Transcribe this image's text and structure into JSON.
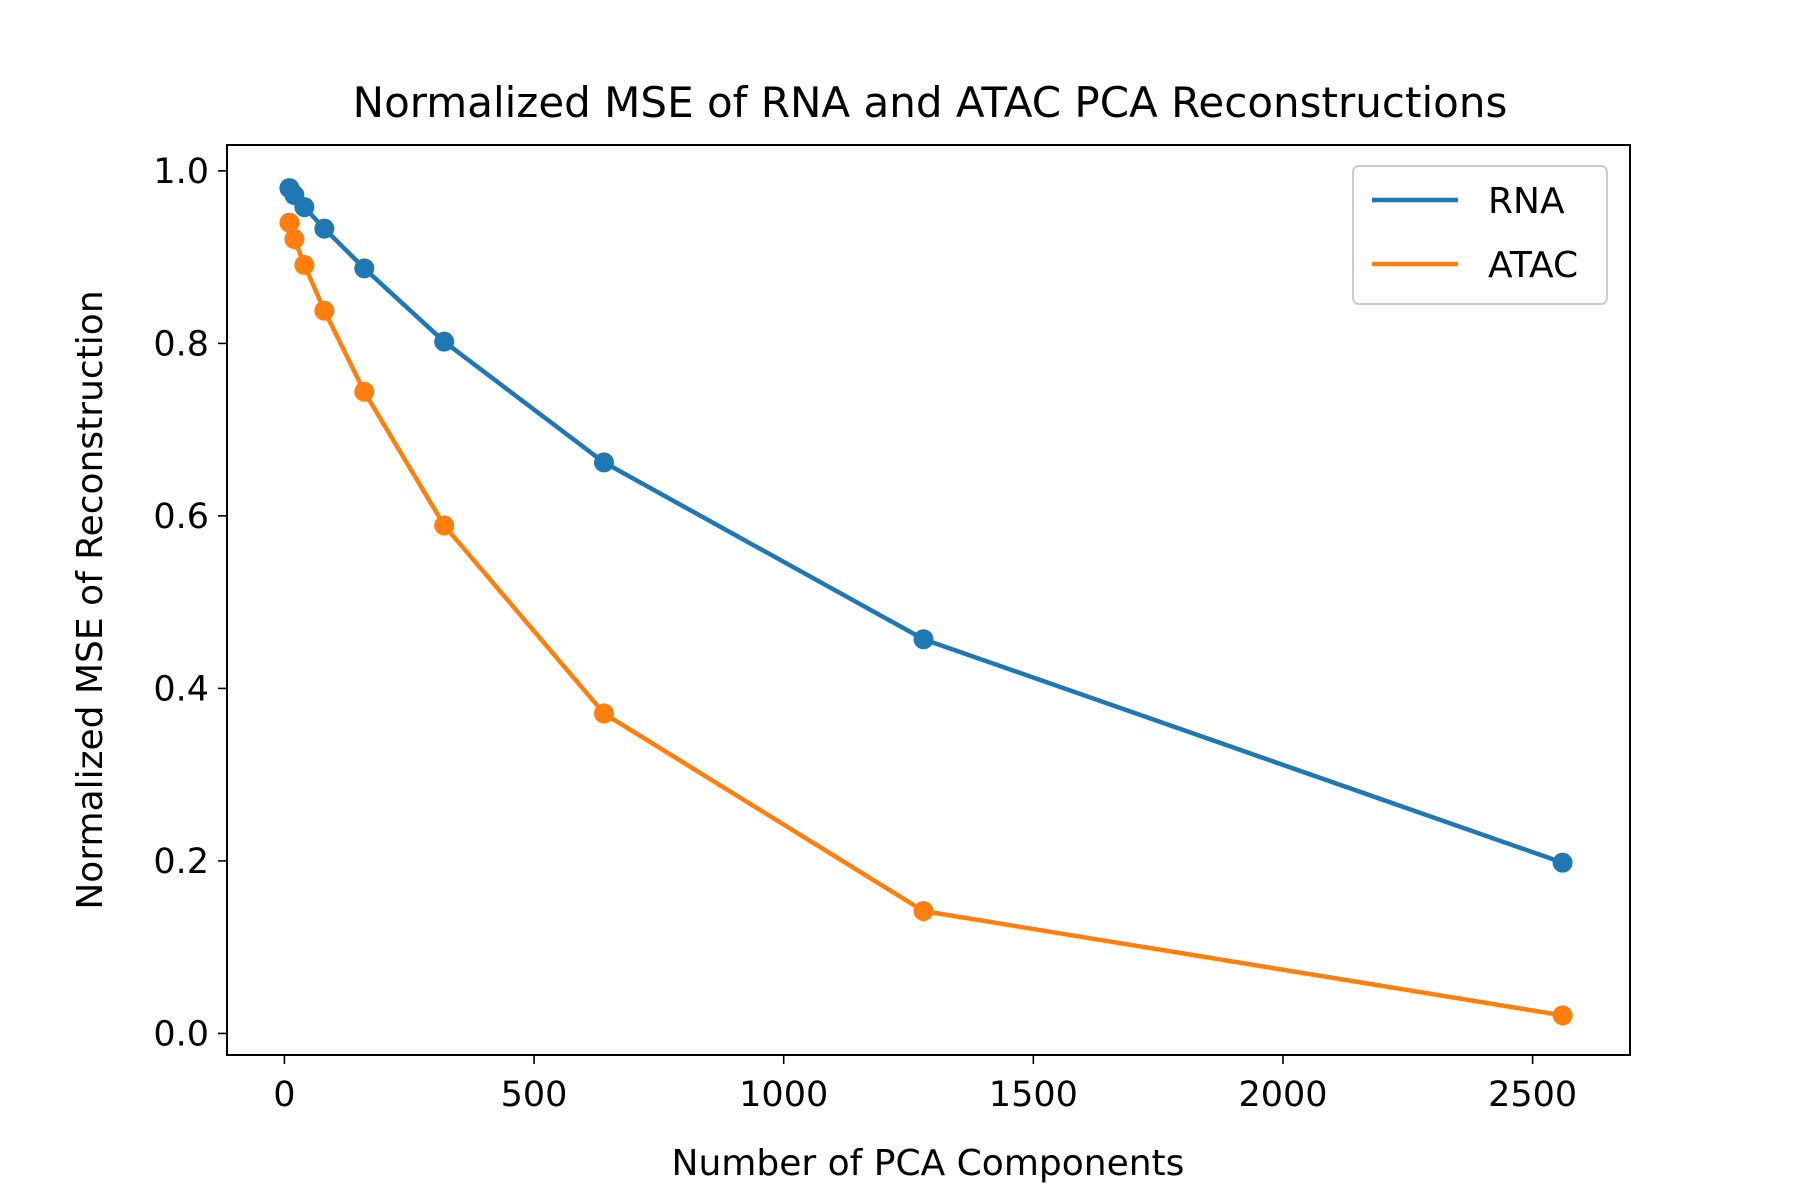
{
  "chart_data": {
    "type": "line",
    "title": "Normalized MSE of RNA and ATAC PCA Reconstructions",
    "xlabel": "Number of PCA Components",
    "ylabel": "Normalized MSE of Reconstruction",
    "xlim": [
      -115,
      2695
    ],
    "ylim": [
      -0.025,
      1.03
    ],
    "xticks": [
      0,
      500,
      1000,
      1500,
      2000,
      2500
    ],
    "xtick_labels": [
      "0",
      "500",
      "1000",
      "1500",
      "2000",
      "2500"
    ],
    "yticks": [
      0.0,
      0.2,
      0.4,
      0.6,
      0.8,
      1.0
    ],
    "ytick_labels": [
      "0.0",
      "0.2",
      "0.4",
      "0.6",
      "0.8",
      "1.0"
    ],
    "grid": false,
    "legend_position": "top-right",
    "markers": true,
    "x": [
      10,
      20,
      40,
      80,
      160,
      320,
      640,
      1280,
      2560
    ],
    "series": [
      {
        "name": "RNA",
        "color": "#1f77b4",
        "values": [
          0.98,
          0.972,
          0.958,
          0.933,
          0.887,
          0.802,
          0.662,
          0.457,
          0.198
        ]
      },
      {
        "name": "ATAC",
        "color": "#ff7f0e",
        "values": [
          0.94,
          0.921,
          0.891,
          0.838,
          0.744,
          0.589,
          0.371,
          0.142,
          0.021
        ]
      }
    ]
  }
}
